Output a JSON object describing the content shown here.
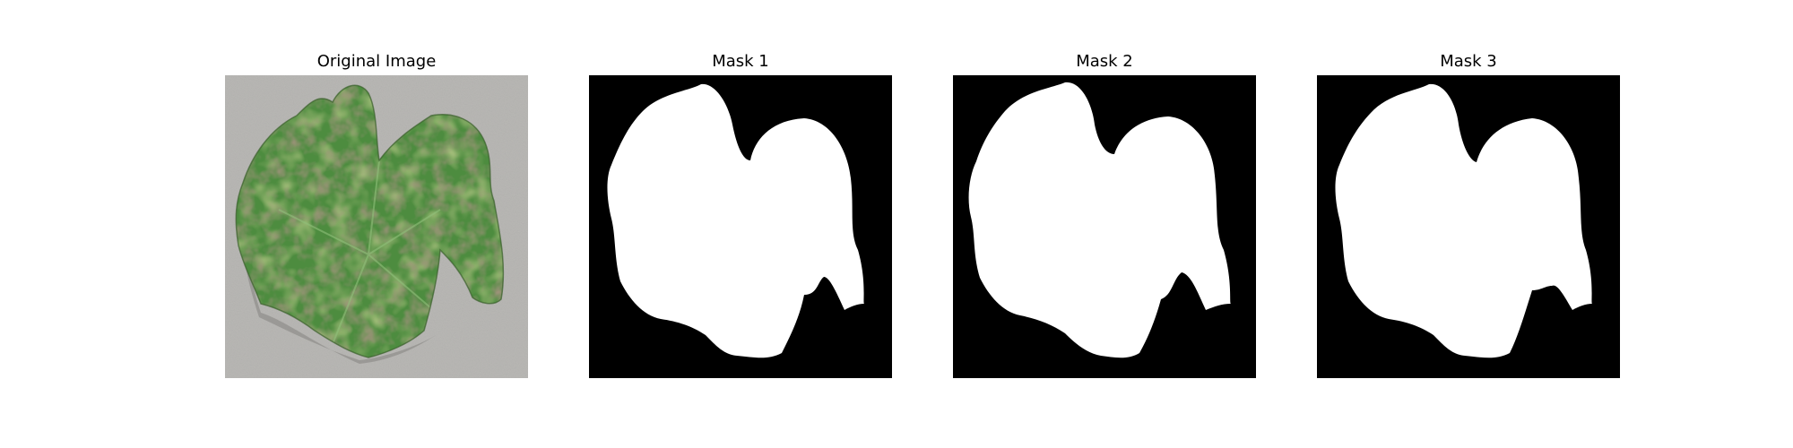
{
  "figure": {
    "panels": [
      {
        "title": "Original Image",
        "content": "leaf photograph"
      },
      {
        "title": "Mask 1",
        "content": "binary segmentation mask"
      },
      {
        "title": "Mask 2",
        "content": "binary segmentation mask"
      },
      {
        "title": "Mask 3",
        "content": "binary segmentation mask"
      }
    ]
  },
  "colors": {
    "background": "#ffffff",
    "mask_background": "#000000",
    "mask_foreground": "#ffffff",
    "photo_background": "#b9b8b5",
    "leaf_green": "#4d8c3f",
    "leaf_yellow": "#b6b855",
    "leaf_spot": "#5a4a35"
  }
}
